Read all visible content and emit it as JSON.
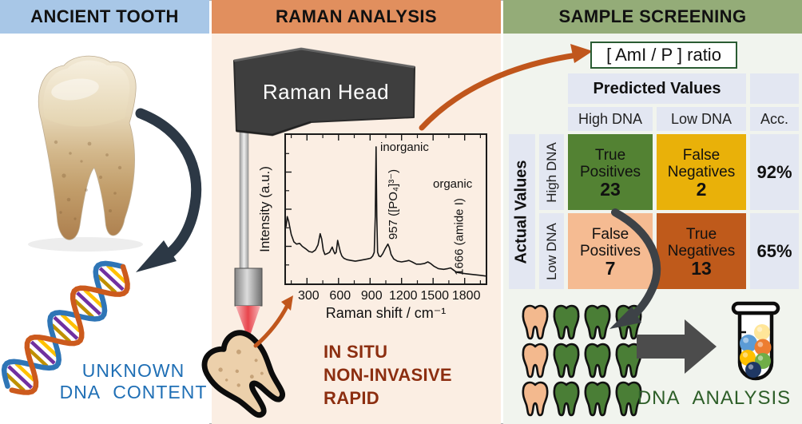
{
  "colors": {
    "header_blue": "#a8c7e7",
    "header_orange": "#e18f5e",
    "header_green": "#94ac78",
    "header_text": "#111111",
    "panel_left_bg": "#ffffff",
    "panel_mid_bg": "#fbeee3",
    "panel_right_bg": "#f1f4ee",
    "arrow_orange": "#c0561c",
    "arrow_dark_left": "#2c3845",
    "arrow_dark_right": "#3d4247",
    "block_arrow_gray": "#4c4c4c",
    "caption_blue": "#1f6fb5",
    "notes_maroon": "#8c2e10",
    "analysis_green": "#2d5e28",
    "ratio_border_green": "#2a5c33",
    "cell_lavender": "#e3e7f2",
    "tooth_peach": "#f3b98e",
    "tooth_green": "#4a7e36",
    "dna_strand_blue": "#2e75b6",
    "dna_strand_orange": "#cc5a1d",
    "laser_red": "#e73c44"
  },
  "panels": {
    "ancient_tooth": {
      "header": "ANCIENT TOOTH",
      "caption_line1": "UNKNOWN",
      "caption_line2": "DNA CONTENT"
    },
    "raman_analysis": {
      "header": "RAMAN ANALYSIS",
      "device_label": "Raman Head",
      "notes": [
        "IN SITU",
        "NON-INVASIVE",
        "RAPID"
      ]
    },
    "sample_screening": {
      "header": "SAMPLE SCREENING",
      "ratio_label": "[ AmI / P ] ratio",
      "matrix": {
        "predicted_header": "Predicted Values",
        "actual_header": "Actual Values",
        "col_labels": [
          "High DNA",
          "Low DNA",
          "Acc."
        ],
        "row_labels": [
          "High DNA",
          "Low DNA"
        ],
        "cells": [
          {
            "label1": "True",
            "label2": "Positives",
            "value": "23",
            "color": "#538233"
          },
          {
            "label1": "False",
            "label2": "Negatives",
            "value": "2",
            "color": "#e9b109"
          },
          {
            "label1": "False",
            "label2": "Positives",
            "value": "7",
            "color": "#f5bb92"
          },
          {
            "label1": "True",
            "label2": "Negatives",
            "value": "13",
            "color": "#bf5a1b"
          }
        ],
        "accuracy": [
          "92%",
          "65%"
        ]
      },
      "teeth_rows": [
        [
          "peach",
          "green",
          "green",
          "green"
        ],
        [
          "peach",
          "green",
          "green",
          "green"
        ],
        [
          "peach",
          "green",
          "green",
          "green"
        ]
      ],
      "tube_ball_colors": [
        "#5b9bd5",
        "#ffe699",
        "#ed7d31",
        "#ffc000",
        "#70ad47",
        "#1f3864"
      ],
      "analysis_label": "DNA ANALYSIS"
    }
  },
  "chart_data": {
    "type": "line",
    "title": "",
    "xlabel": "Raman shift / cm⁻¹",
    "ylabel": "Intensity (a.u.)",
    "xlim": [
      100,
      2000
    ],
    "ylim": [
      0,
      1
    ],
    "xticks": [
      300,
      600,
      900,
      1200,
      1500,
      1800
    ],
    "grid": false,
    "annotations": {
      "inorganic": "inorganic",
      "peak_phosphate": "957 ([PO₄]³⁻)",
      "organic": "organic",
      "peak_amide": "1666 (amide I)"
    },
    "x": [
      100,
      112,
      125,
      150,
      175,
      200,
      230,
      255,
      285,
      320,
      350,
      380,
      405,
      425,
      440,
      455,
      470,
      490,
      515,
      540,
      552,
      565,
      578,
      592,
      605,
      618,
      632,
      650,
      680,
      720,
      760,
      800,
      840,
      875,
      905,
      925,
      940,
      950,
      957,
      964,
      972,
      985,
      1000,
      1020,
      1045,
      1070,
      1085,
      1100,
      1125,
      1160,
      1200,
      1240,
      1270,
      1300,
      1340,
      1380,
      1420,
      1450,
      1475,
      1510,
      1550,
      1600,
      1640,
      1666,
      1695,
      1725,
      1765,
      1820,
      1880,
      1950,
      2000
    ],
    "y": [
      0.38,
      0.45,
      0.42,
      0.33,
      0.28,
      0.265,
      0.27,
      0.25,
      0.235,
      0.215,
      0.21,
      0.225,
      0.26,
      0.335,
      0.3,
      0.225,
      0.195,
      0.2,
      0.21,
      0.245,
      0.22,
      0.2,
      0.21,
      0.29,
      0.25,
      0.21,
      0.185,
      0.17,
      0.16,
      0.155,
      0.15,
      0.155,
      0.16,
      0.165,
      0.17,
      0.185,
      0.21,
      0.45,
      0.92,
      0.45,
      0.21,
      0.185,
      0.18,
      0.2,
      0.235,
      0.265,
      0.24,
      0.195,
      0.165,
      0.15,
      0.145,
      0.15,
      0.155,
      0.145,
      0.13,
      0.13,
      0.135,
      0.145,
      0.135,
      0.115,
      0.1,
      0.095,
      0.1,
      0.105,
      0.09,
      0.075,
      0.07,
      0.065,
      0.06,
      0.055,
      0.05
    ]
  }
}
